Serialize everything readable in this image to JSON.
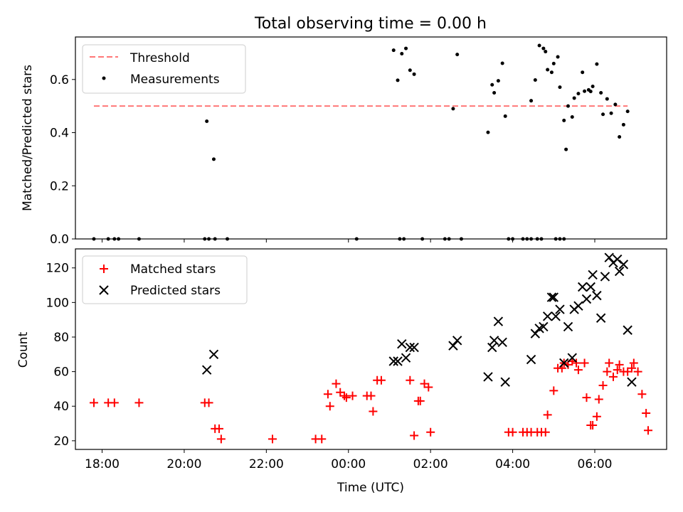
{
  "title": "Total observing time = 0.00 h",
  "xlabel": "Time (UTC)",
  "colors": {
    "threshold": "#ff7777",
    "measurement": "#000000",
    "matched": "#ff0000",
    "predicted": "#000000"
  },
  "chart_data": [
    {
      "type": "scatter",
      "title": "Total observing time = 0.00 h",
      "xlabel": "",
      "ylabel": "Matched/Predicted stars",
      "x_unit": "hours since 18:00 UTC",
      "xlim": [
        -0.65,
        13.75
      ],
      "ylim": [
        0,
        0.76
      ],
      "yticks": [
        0.0,
        0.2,
        0.4,
        0.6
      ],
      "ytick_labels": [
        "0.0",
        "0.2",
        "0.4",
        "0.6"
      ],
      "xticks": [
        0,
        2,
        4,
        6,
        8,
        10,
        12
      ],
      "legend": {
        "placement": "top-left",
        "entries": [
          "Threshold",
          "Measurements"
        ]
      },
      "threshold": {
        "name": "Threshold",
        "y": 0.5,
        "x_range": [
          -0.2,
          12.8
        ]
      },
      "series": [
        {
          "name": "Measurements",
          "points": [
            [
              -0.2,
              0
            ],
            [
              0.15,
              0
            ],
            [
              0.3,
              0
            ],
            [
              0.4,
              0
            ],
            [
              0.9,
              0
            ],
            [
              2.5,
              0
            ],
            [
              2.6,
              0
            ],
            [
              2.75,
              0
            ],
            [
              3.05,
              0
            ],
            [
              6.2,
              0
            ],
            [
              7.25,
              0
            ],
            [
              7.35,
              0
            ],
            [
              7.8,
              0
            ],
            [
              8.35,
              0
            ],
            [
              8.45,
              0
            ],
            [
              8.75,
              0
            ],
            [
              9.9,
              0
            ],
            [
              10.0,
              0
            ],
            [
              10.25,
              0
            ],
            [
              10.35,
              0
            ],
            [
              10.45,
              0
            ],
            [
              10.6,
              0
            ],
            [
              10.7,
              0
            ],
            [
              11.05,
              0
            ],
            [
              11.15,
              0
            ],
            [
              11.25,
              0
            ],
            [
              2.55,
              0.443
            ],
            [
              2.72,
              0.3
            ],
            [
              7.1,
              0.71
            ],
            [
              7.2,
              0.597
            ],
            [
              7.3,
              0.697
            ],
            [
              7.4,
              0.717
            ],
            [
              7.5,
              0.635
            ],
            [
              7.6,
              0.62
            ],
            [
              8.55,
              0.49
            ],
            [
              8.65,
              0.694
            ],
            [
              9.4,
              0.401
            ],
            [
              9.5,
              0.58
            ],
            [
              9.55,
              0.55
            ],
            [
              9.65,
              0.595
            ],
            [
              9.75,
              0.661
            ],
            [
              9.82,
              0.462
            ],
            [
              10.45,
              0.52
            ],
            [
              10.55,
              0.598
            ],
            [
              10.65,
              0.728
            ],
            [
              10.75,
              0.717
            ],
            [
              10.8,
              0.705
            ],
            [
              10.85,
              0.637
            ],
            [
              10.95,
              0.627
            ],
            [
              11.0,
              0.66
            ],
            [
              11.1,
              0.685
            ],
            [
              11.15,
              0.571
            ],
            [
              11.25,
              0.446
            ],
            [
              11.3,
              0.337
            ],
            [
              11.35,
              0.5
            ],
            [
              11.45,
              0.459
            ],
            [
              11.5,
              0.53
            ],
            [
              11.6,
              0.547
            ],
            [
              11.7,
              0.627
            ],
            [
              11.75,
              0.556
            ],
            [
              11.85,
              0.561
            ],
            [
              11.9,
              0.555
            ],
            [
              11.95,
              0.574
            ],
            [
              12.05,
              0.658
            ],
            [
              12.15,
              0.55
            ],
            [
              12.2,
              0.469
            ],
            [
              12.3,
              0.527
            ],
            [
              12.4,
              0.473
            ],
            [
              12.5,
              0.506
            ],
            [
              12.6,
              0.384
            ],
            [
              12.7,
              0.43
            ],
            [
              12.8,
              0.48
            ]
          ]
        }
      ]
    },
    {
      "type": "scatter",
      "title": "",
      "xlabel": "Time (UTC)",
      "ylabel": "Count",
      "x_unit": "hours since 18:00 UTC",
      "xlim": [
        -0.65,
        13.75
      ],
      "ylim": [
        15,
        131
      ],
      "yticks": [
        20,
        40,
        60,
        80,
        100,
        120
      ],
      "ytick_labels": [
        "20",
        "40",
        "60",
        "80",
        "100",
        "120"
      ],
      "xticks": [
        0,
        2,
        4,
        6,
        8,
        10,
        12
      ],
      "xtick_labels": [
        "18:00",
        "20:00",
        "22:00",
        "00:00",
        "02:00",
        "04:00",
        "06:00"
      ],
      "legend": {
        "placement": "top-left",
        "entries": [
          "Matched stars",
          "Predicted stars"
        ]
      },
      "series": [
        {
          "name": "Matched stars",
          "points": [
            [
              -0.2,
              42
            ],
            [
              0.15,
              42
            ],
            [
              0.3,
              42
            ],
            [
              0.9,
              42
            ],
            [
              2.5,
              42
            ],
            [
              2.6,
              42
            ],
            [
              2.75,
              27
            ],
            [
              2.85,
              27
            ],
            [
              2.9,
              21
            ],
            [
              4.15,
              21
            ],
            [
              5.2,
              21
            ],
            [
              5.35,
              21
            ],
            [
              5.5,
              47
            ],
            [
              5.55,
              40
            ],
            [
              5.7,
              53
            ],
            [
              5.8,
              48
            ],
            [
              5.9,
              46
            ],
            [
              5.95,
              45
            ],
            [
              6.1,
              46
            ],
            [
              6.45,
              46
            ],
            [
              6.55,
              46
            ],
            [
              6.6,
              37
            ],
            [
              6.7,
              55
            ],
            [
              6.8,
              55
            ],
            [
              7.5,
              55
            ],
            [
              7.6,
              23
            ],
            [
              7.7,
              43
            ],
            [
              7.75,
              43
            ],
            [
              7.85,
              53
            ],
            [
              7.95,
              51
            ],
            [
              8.0,
              25
            ],
            [
              9.9,
              25
            ],
            [
              10.0,
              25
            ],
            [
              10.25,
              25
            ],
            [
              10.35,
              25
            ],
            [
              10.45,
              25
            ],
            [
              10.6,
              25
            ],
            [
              10.7,
              25
            ],
            [
              10.8,
              25
            ],
            [
              10.85,
              35
            ],
            [
              11.0,
              49
            ],
            [
              11.1,
              62
            ],
            [
              11.2,
              62
            ],
            [
              11.25,
              65
            ],
            [
              11.35,
              64
            ],
            [
              11.45,
              66
            ],
            [
              11.55,
              65
            ],
            [
              11.6,
              61
            ],
            [
              11.75,
              65
            ],
            [
              11.8,
              45
            ],
            [
              11.9,
              29
            ],
            [
              11.95,
              29
            ],
            [
              12.05,
              34
            ],
            [
              12.1,
              44
            ],
            [
              12.2,
              52
            ],
            [
              12.3,
              60
            ],
            [
              12.35,
              65
            ],
            [
              12.45,
              57
            ],
            [
              12.55,
              61
            ],
            [
              12.6,
              64
            ],
            [
              12.7,
              60
            ],
            [
              12.8,
              60
            ],
            [
              12.9,
              62
            ],
            [
              12.95,
              65
            ],
            [
              13.05,
              60
            ],
            [
              13.15,
              47
            ],
            [
              13.25,
              36
            ],
            [
              13.3,
              26
            ]
          ]
        },
        {
          "name": "Predicted stars",
          "points": [
            [
              2.55,
              61
            ],
            [
              2.72,
              70
            ],
            [
              7.1,
              66
            ],
            [
              7.2,
              66
            ],
            [
              7.3,
              76
            ],
            [
              7.4,
              68
            ],
            [
              7.5,
              74
            ],
            [
              7.6,
              74
            ],
            [
              8.55,
              75
            ],
            [
              8.65,
              78
            ],
            [
              9.4,
              57
            ],
            [
              9.5,
              74
            ],
            [
              9.55,
              78
            ],
            [
              9.65,
              89
            ],
            [
              9.75,
              77
            ],
            [
              9.82,
              54
            ],
            [
              10.45,
              67
            ],
            [
              10.55,
              82
            ],
            [
              10.65,
              85
            ],
            [
              10.75,
              86
            ],
            [
              10.85,
              92
            ],
            [
              10.95,
              103
            ],
            [
              11.0,
              103
            ],
            [
              11.05,
              92
            ],
            [
              11.15,
              96
            ],
            [
              11.25,
              65
            ],
            [
              11.35,
              86
            ],
            [
              11.45,
              68
            ],
            [
              11.5,
              96
            ],
            [
              11.6,
              98
            ],
            [
              11.7,
              109
            ],
            [
              11.8,
              102
            ],
            [
              11.9,
              109
            ],
            [
              11.95,
              116
            ],
            [
              12.05,
              104
            ],
            [
              12.15,
              91
            ],
            [
              12.25,
              115
            ],
            [
              12.35,
              126
            ],
            [
              12.45,
              123
            ],
            [
              12.55,
              125
            ],
            [
              12.6,
              118
            ],
            [
              12.7,
              122
            ],
            [
              12.8,
              84
            ],
            [
              12.9,
              54
            ]
          ]
        }
      ]
    }
  ]
}
